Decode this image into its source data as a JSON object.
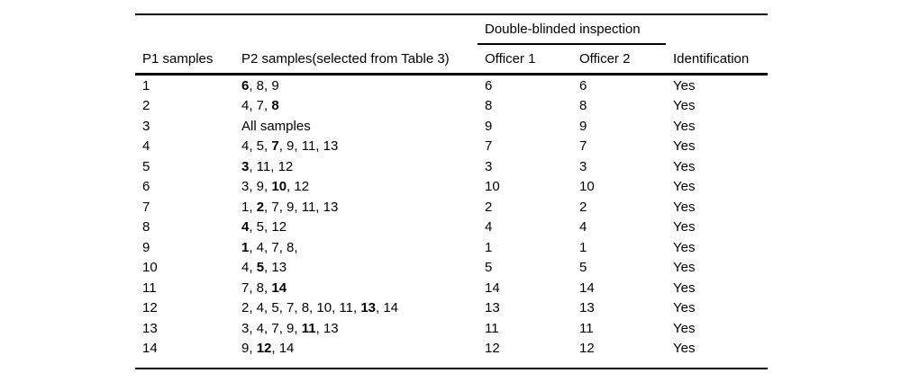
{
  "page": {
    "background": "#ffffff",
    "text_color": "#000000",
    "rule_color": "#000000"
  },
  "table": {
    "group_header": "Double-blinded inspection",
    "columns": [
      "P1 samples",
      "P2 samples(selected from Table 3)",
      "Officer 1",
      "Officer 2",
      "Identification"
    ],
    "rows": [
      {
        "p1": "1",
        "p2": [
          {
            "text": "6",
            "bold": true
          },
          {
            "text": ", 8, 9",
            "bold": false
          }
        ],
        "officer1": "6",
        "officer2": "6",
        "identification": "Yes"
      },
      {
        "p1": "2",
        "p2": [
          {
            "text": "4, 7, ",
            "bold": false
          },
          {
            "text": "8",
            "bold": true
          }
        ],
        "officer1": "8",
        "officer2": "8",
        "identification": "Yes"
      },
      {
        "p1": "3",
        "p2": [
          {
            "text": "All samples",
            "bold": false
          }
        ],
        "officer1": "9",
        "officer2": "9",
        "identification": "Yes"
      },
      {
        "p1": "4",
        "p2": [
          {
            "text": "4, 5, ",
            "bold": false
          },
          {
            "text": "7",
            "bold": true
          },
          {
            "text": ", 9, 11, 13",
            "bold": false
          }
        ],
        "officer1": "7",
        "officer2": "7",
        "identification": "Yes"
      },
      {
        "p1": "5",
        "p2": [
          {
            "text": "3",
            "bold": true
          },
          {
            "text": ", 11, 12",
            "bold": false
          }
        ],
        "officer1": "3",
        "officer2": "3",
        "identification": "Yes"
      },
      {
        "p1": "6",
        "p2": [
          {
            "text": "3, 9, ",
            "bold": false
          },
          {
            "text": "10",
            "bold": true
          },
          {
            "text": ", 12",
            "bold": false
          }
        ],
        "officer1": "10",
        "officer2": "10",
        "identification": "Yes"
      },
      {
        "p1": "7",
        "p2": [
          {
            "text": "1, ",
            "bold": false
          },
          {
            "text": "2",
            "bold": true
          },
          {
            "text": ", 7, 9, 11, 13",
            "bold": false
          }
        ],
        "officer1": "2",
        "officer2": "2",
        "identification": "Yes"
      },
      {
        "p1": "8",
        "p2": [
          {
            "text": "4",
            "bold": true
          },
          {
            "text": ", 5, 12",
            "bold": false
          }
        ],
        "officer1": "4",
        "officer2": "4",
        "identification": "Yes"
      },
      {
        "p1": "9",
        "p2": [
          {
            "text": "1",
            "bold": true
          },
          {
            "text": ", 4, 7, 8,",
            "bold": false
          }
        ],
        "officer1": "1",
        "officer2": "1",
        "identification": "Yes"
      },
      {
        "p1": "10",
        "p2": [
          {
            "text": "4, ",
            "bold": false
          },
          {
            "text": "5",
            "bold": true
          },
          {
            "text": ", 13",
            "bold": false
          }
        ],
        "officer1": "5",
        "officer2": "5",
        "identification": "Yes"
      },
      {
        "p1": "11",
        "p2": [
          {
            "text": "7, 8, ",
            "bold": false
          },
          {
            "text": "14",
            "bold": true
          }
        ],
        "officer1": "14",
        "officer2": "14",
        "identification": "Yes"
      },
      {
        "p1": "12",
        "p2": [
          {
            "text": "2, 4, 5, 7, 8, 10, 11, ",
            "bold": false
          },
          {
            "text": "13",
            "bold": true
          },
          {
            "text": ", 14",
            "bold": false
          }
        ],
        "officer1": "13",
        "officer2": "13",
        "identification": "Yes"
      },
      {
        "p1": "13",
        "p2": [
          {
            "text": "3, 4, 7, 9, ",
            "bold": false
          },
          {
            "text": "11",
            "bold": true
          },
          {
            "text": ", 13",
            "bold": false
          }
        ],
        "officer1": "11",
        "officer2": "11",
        "identification": "Yes"
      },
      {
        "p1": "14",
        "p2": [
          {
            "text": "9, ",
            "bold": false
          },
          {
            "text": "12",
            "bold": true
          },
          {
            "text": ", 14",
            "bold": false
          }
        ],
        "officer1": "12",
        "officer2": "12",
        "identification": "Yes"
      }
    ]
  }
}
